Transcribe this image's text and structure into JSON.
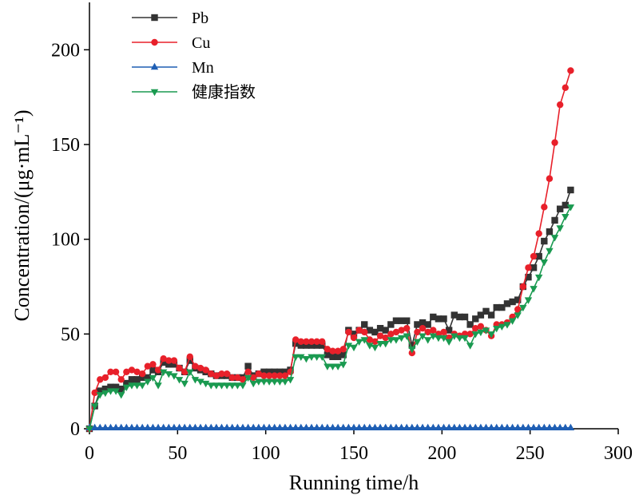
{
  "chart_data": {
    "type": "line",
    "x_label": "Running time/h",
    "y_label": "Concentration/(μg·mL⁻¹)",
    "xlim": [
      0,
      300
    ],
    "ylim": [
      0,
      225
    ],
    "xticks": [
      0,
      50,
      100,
      150,
      200,
      250,
      300
    ],
    "yticks": [
      0,
      50,
      100,
      150,
      200
    ],
    "legend": "upper left",
    "x": [
      0,
      3,
      6,
      9,
      12,
      15,
      18,
      21,
      24,
      27,
      30,
      33,
      36,
      39,
      42,
      45,
      48,
      51,
      54,
      57,
      60,
      63,
      66,
      69,
      72,
      75,
      78,
      81,
      84,
      87,
      90,
      93,
      96,
      99,
      102,
      105,
      108,
      111,
      114,
      117,
      120,
      123,
      126,
      129,
      132,
      135,
      138,
      141,
      144,
      147,
      150,
      153,
      156,
      159,
      162,
      165,
      168,
      171,
      174,
      177,
      180,
      183,
      186,
      189,
      192,
      195,
      198,
      201,
      204,
      207,
      210,
      213,
      216,
      219,
      222,
      225,
      228,
      231,
      234,
      237,
      240,
      243,
      246,
      249,
      252,
      255,
      258,
      261,
      264,
      267,
      270,
      273
    ],
    "series": [
      {
        "name": "Pb",
        "color": "#333333",
        "marker": "square",
        "values": [
          0,
          12,
          20,
          21,
          22,
          22,
          21,
          24,
          26,
          26,
          27,
          27,
          31,
          30,
          35,
          34,
          34,
          32,
          30,
          36,
          32,
          31,
          30,
          29,
          28,
          28,
          28,
          27,
          27,
          27,
          33,
          28,
          29,
          30,
          30,
          30,
          30,
          30,
          31,
          45,
          44,
          44,
          44,
          44,
          44,
          39,
          38,
          38,
          39,
          52,
          50,
          52,
          55,
          52,
          51,
          53,
          52,
          55,
          57,
          57,
          57,
          44,
          55,
          56,
          55,
          59,
          58,
          58,
          52,
          60,
          59,
          59,
          55,
          58,
          60,
          62,
          60,
          64,
          64,
          66,
          67,
          68,
          75,
          80,
          85,
          91,
          99,
          104,
          110,
          116,
          118,
          126
        ]
      },
      {
        "name": "Cu",
        "color": "#e8202a",
        "marker": "circle",
        "values": [
          0,
          19,
          26,
          27,
          30,
          30,
          26,
          30,
          31,
          30,
          29,
          33,
          34,
          31,
          37,
          36,
          36,
          32,
          30,
          38,
          33,
          32,
          31,
          29,
          28,
          29,
          29,
          27,
          27,
          26,
          30,
          27,
          29,
          28,
          28,
          28,
          28,
          28,
          30,
          47,
          46,
          46,
          46,
          46,
          46,
          42,
          41,
          41,
          42,
          51,
          48,
          52,
          51,
          47,
          46,
          49,
          48,
          50,
          51,
          52,
          53,
          40,
          51,
          53,
          51,
          52,
          50,
          51,
          48,
          50,
          49,
          50,
          50,
          53,
          54,
          52,
          49,
          55,
          55,
          56,
          59,
          63,
          75,
          85,
          91,
          103,
          117,
          132,
          151,
          171,
          180,
          189
        ]
      },
      {
        "name": "Mn",
        "color": "#1f5fb4",
        "marker": "triangle-up",
        "values": [
          0.5,
          0.5,
          0.5,
          0.5,
          0.5,
          0.5,
          0.5,
          0.5,
          0.5,
          0.5,
          0.5,
          0.5,
          0.5,
          0.5,
          0.5,
          0.5,
          0.5,
          0.5,
          0.5,
          0.5,
          0.5,
          0.5,
          0.5,
          0.5,
          0.5,
          0.5,
          0.5,
          0.5,
          0.5,
          0.5,
          0.5,
          0.5,
          0.5,
          0.5,
          0.5,
          0.5,
          0.5,
          0.5,
          0.5,
          0.5,
          0.5,
          0.5,
          0.5,
          0.5,
          0.5,
          0.5,
          0.5,
          0.5,
          0.5,
          0.5,
          0.5,
          0.5,
          0.5,
          0.5,
          0.5,
          0.5,
          0.5,
          0.5,
          0.5,
          0.5,
          0.5,
          0.5,
          0.5,
          0.5,
          0.5,
          0.5,
          0.5,
          0.5,
          0.5,
          0.5,
          0.5,
          0.5,
          0.5,
          0.5,
          0.5,
          0.5,
          0.5,
          0.5,
          0.5,
          0.5,
          0.5,
          0.5,
          0.5,
          0.5,
          0.5,
          0.5,
          0.5,
          0.5,
          0.5,
          0.5,
          0.5,
          0.5
        ]
      },
      {
        "name": "健康指数",
        "color": "#1a9a50",
        "marker": "triangle-down",
        "values": [
          0,
          12,
          18,
          19,
          20,
          20,
          18,
          22,
          23,
          23,
          23,
          25,
          27,
          23,
          30,
          29,
          28,
          26,
          24,
          30,
          26,
          25,
          24,
          23,
          23,
          23,
          23,
          23,
          23,
          23,
          27,
          24,
          25,
          25,
          25,
          25,
          25,
          25,
          26,
          38,
          38,
          37,
          38,
          38,
          38,
          33,
          33,
          33,
          34,
          44,
          43,
          46,
          47,
          44,
          43,
          45,
          45,
          47,
          47,
          48,
          49,
          42,
          46,
          49,
          47,
          49,
          48,
          48,
          46,
          49,
          48,
          48,
          44,
          50,
          51,
          52,
          50,
          53,
          54,
          55,
          57,
          60,
          64,
          68,
          74,
          80,
          88,
          94,
          101,
          106,
          112,
          117
        ]
      }
    ]
  }
}
